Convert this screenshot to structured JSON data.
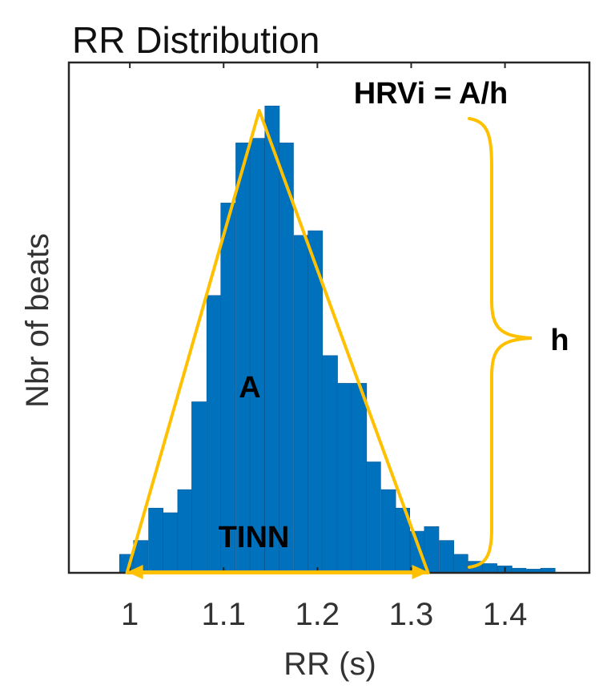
{
  "chart_data": {
    "type": "bar",
    "title": "RR Distribution",
    "xlabel": "RR (s)",
    "ylabel": "Nbr of beats",
    "xlim": [
      0.935,
      1.49
    ],
    "ylim": [
      0,
      100
    ],
    "x_ticks": [
      1,
      1.1,
      1.2,
      1.3,
      1.4
    ],
    "x_tick_labels": [
      "1",
      "1.1",
      "1.2",
      "1.3",
      "1.4"
    ],
    "bin_width": 0.0155,
    "bin_starts": [
      0.989,
      1.004,
      1.02,
      1.035,
      1.051,
      1.066,
      1.082,
      1.097,
      1.113,
      1.128,
      1.144,
      1.159,
      1.175,
      1.19,
      1.206,
      1.221,
      1.237,
      1.252,
      1.268,
      1.283,
      1.299,
      1.314,
      1.33,
      1.345,
      1.361,
      1.376,
      1.392,
      1.407,
      1.423,
      1.438
    ],
    "values": [
      4,
      7,
      14,
      13,
      18,
      37,
      60,
      80,
      93,
      94,
      101,
      93,
      73,
      74,
      47,
      41,
      41,
      24,
      18,
      14,
      9,
      10,
      7,
      4,
      2.5,
      2,
      1.5,
      1,
      0.8,
      1
    ],
    "bar_color": "#0072BD",
    "overlay_color": "#FFC000",
    "triangle": {
      "left_x": 0.997,
      "peak_x": 1.138,
      "peak_y": 100,
      "right_x": 1.318
    },
    "annotations": {
      "formula": "HRVi = A/h",
      "area": "A",
      "baseline": "TINN",
      "height": "h"
    }
  }
}
